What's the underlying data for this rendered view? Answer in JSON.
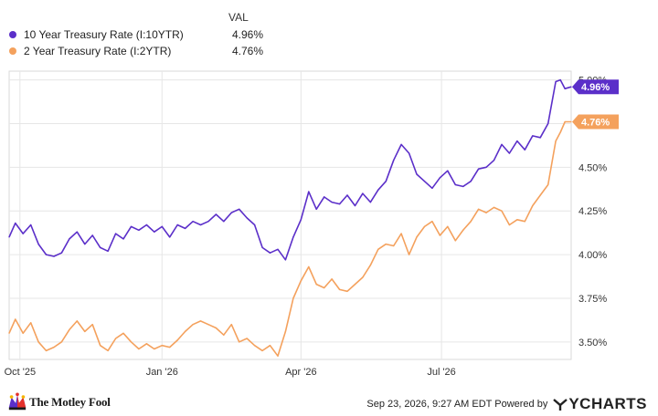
{
  "legend": {
    "header": "VAL",
    "items": [
      {
        "name": "10 Year Treasury Rate (I:10YTR)",
        "value": "4.96%",
        "color": "#5b2fc9"
      },
      {
        "name": "2 Year Treasury Rate (I:2YTR)",
        "value": "4.76%",
        "color": "#f4a15d"
      }
    ]
  },
  "footer": {
    "brand": "The Motley Fool",
    "attribution": "Sep 23, 2026, 9:27 AM EDT Powered by",
    "ycharts": "YCHARTS"
  },
  "chart_data": {
    "type": "line",
    "x_type": "date",
    "xlim": [
      "2025-09-24",
      "2026-09-23"
    ],
    "ylim": [
      3.4,
      5.05
    ],
    "y_ticks": [
      3.5,
      3.75,
      4.0,
      4.25,
      4.5,
      5.0
    ],
    "y_tick_labels": [
      "3.50%",
      "3.75%",
      "4.00%",
      "4.25%",
      "4.50%",
      "5.00%"
    ],
    "x_ticks": [
      "2025-10-01",
      "2026-01-01",
      "2026-04-01",
      "2026-07-01"
    ],
    "x_tick_labels": [
      "Oct '25",
      "Jan '26",
      "Apr '26",
      "Jul '26"
    ],
    "grid": true,
    "series": [
      {
        "name": "10 Year Treasury Rate (I:10YTR)",
        "color": "#5b2fc9",
        "end_label": "4.96%",
        "points": [
          [
            "2025-09-24",
            4.1
          ],
          [
            "2025-09-28",
            4.18
          ],
          [
            "2025-10-03",
            4.12
          ],
          [
            "2025-10-08",
            4.17
          ],
          [
            "2025-10-13",
            4.06
          ],
          [
            "2025-10-18",
            4.0
          ],
          [
            "2025-10-23",
            3.99
          ],
          [
            "2025-10-28",
            4.01
          ],
          [
            "2025-11-02",
            4.09
          ],
          [
            "2025-11-07",
            4.13
          ],
          [
            "2025-11-12",
            4.06
          ],
          [
            "2025-11-17",
            4.11
          ],
          [
            "2025-11-22",
            4.04
          ],
          [
            "2025-11-27",
            4.02
          ],
          [
            "2025-12-02",
            4.12
          ],
          [
            "2025-12-07",
            4.09
          ],
          [
            "2025-12-12",
            4.16
          ],
          [
            "2025-12-17",
            4.14
          ],
          [
            "2025-12-22",
            4.17
          ],
          [
            "2025-12-27",
            4.13
          ],
          [
            "2026-01-01",
            4.16
          ],
          [
            "2026-01-06",
            4.1
          ],
          [
            "2026-01-11",
            4.17
          ],
          [
            "2026-01-16",
            4.15
          ],
          [
            "2026-01-21",
            4.19
          ],
          [
            "2026-01-26",
            4.17
          ],
          [
            "2026-01-31",
            4.19
          ],
          [
            "2026-02-05",
            4.23
          ],
          [
            "2026-02-10",
            4.19
          ],
          [
            "2026-02-15",
            4.24
          ],
          [
            "2026-02-20",
            4.26
          ],
          [
            "2026-02-25",
            4.21
          ],
          [
            "2026-03-02",
            4.17
          ],
          [
            "2026-03-07",
            4.04
          ],
          [
            "2026-03-12",
            4.01
          ],
          [
            "2026-03-17",
            4.03
          ],
          [
            "2026-03-22",
            3.97
          ],
          [
            "2026-03-27",
            4.1
          ],
          [
            "2026-04-01",
            4.2
          ],
          [
            "2026-04-06",
            4.36
          ],
          [
            "2026-04-11",
            4.26
          ],
          [
            "2026-04-16",
            4.33
          ],
          [
            "2026-04-21",
            4.3
          ],
          [
            "2026-04-26",
            4.29
          ],
          [
            "2026-05-01",
            4.34
          ],
          [
            "2026-05-06",
            4.28
          ],
          [
            "2026-05-11",
            4.35
          ],
          [
            "2026-05-16",
            4.3
          ],
          [
            "2026-05-21",
            4.37
          ],
          [
            "2026-05-26",
            4.42
          ],
          [
            "2026-05-31",
            4.54
          ],
          [
            "2026-06-05",
            4.63
          ],
          [
            "2026-06-10",
            4.58
          ],
          [
            "2026-06-15",
            4.46
          ],
          [
            "2026-06-20",
            4.42
          ],
          [
            "2026-06-25",
            4.38
          ],
          [
            "2026-06-30",
            4.44
          ],
          [
            "2026-07-05",
            4.48
          ],
          [
            "2026-07-10",
            4.4
          ],
          [
            "2026-07-15",
            4.39
          ],
          [
            "2026-07-20",
            4.42
          ],
          [
            "2026-07-25",
            4.49
          ],
          [
            "2026-07-30",
            4.5
          ],
          [
            "2026-08-04",
            4.54
          ],
          [
            "2026-08-09",
            4.63
          ],
          [
            "2026-08-14",
            4.58
          ],
          [
            "2026-08-19",
            4.65
          ],
          [
            "2026-08-24",
            4.6
          ],
          [
            "2026-08-29",
            4.68
          ],
          [
            "2026-09-03",
            4.67
          ],
          [
            "2026-09-08",
            4.75
          ],
          [
            "2026-09-13",
            4.99
          ],
          [
            "2026-09-16",
            5.0
          ],
          [
            "2026-09-19",
            4.95
          ],
          [
            "2026-09-23",
            4.96
          ]
        ]
      },
      {
        "name": "2 Year Treasury Rate (I:2YTR)",
        "color": "#f4a15d",
        "end_label": "4.76%",
        "points": [
          [
            "2025-09-24",
            3.55
          ],
          [
            "2025-09-28",
            3.63
          ],
          [
            "2025-10-03",
            3.55
          ],
          [
            "2025-10-08",
            3.61
          ],
          [
            "2025-10-13",
            3.5
          ],
          [
            "2025-10-18",
            3.45
          ],
          [
            "2025-10-23",
            3.47
          ],
          [
            "2025-10-28",
            3.5
          ],
          [
            "2025-11-02",
            3.57
          ],
          [
            "2025-11-07",
            3.62
          ],
          [
            "2025-11-12",
            3.56
          ],
          [
            "2025-11-17",
            3.6
          ],
          [
            "2025-11-22",
            3.48
          ],
          [
            "2025-11-27",
            3.45
          ],
          [
            "2025-12-02",
            3.52
          ],
          [
            "2025-12-07",
            3.55
          ],
          [
            "2025-12-12",
            3.5
          ],
          [
            "2025-12-17",
            3.46
          ],
          [
            "2025-12-22",
            3.49
          ],
          [
            "2025-12-27",
            3.46
          ],
          [
            "2026-01-01",
            3.48
          ],
          [
            "2026-01-06",
            3.47
          ],
          [
            "2026-01-11",
            3.51
          ],
          [
            "2026-01-16",
            3.56
          ],
          [
            "2026-01-21",
            3.6
          ],
          [
            "2026-01-26",
            3.62
          ],
          [
            "2026-01-31",
            3.6
          ],
          [
            "2026-02-05",
            3.58
          ],
          [
            "2026-02-10",
            3.54
          ],
          [
            "2026-02-15",
            3.6
          ],
          [
            "2026-02-20",
            3.5
          ],
          [
            "2026-02-25",
            3.52
          ],
          [
            "2026-03-02",
            3.48
          ],
          [
            "2026-03-07",
            3.45
          ],
          [
            "2026-03-12",
            3.48
          ],
          [
            "2026-03-17",
            3.42
          ],
          [
            "2026-03-22",
            3.56
          ],
          [
            "2026-03-27",
            3.75
          ],
          [
            "2026-04-01",
            3.85
          ],
          [
            "2026-04-06",
            3.93
          ],
          [
            "2026-04-11",
            3.83
          ],
          [
            "2026-04-16",
            3.81
          ],
          [
            "2026-04-21",
            3.86
          ],
          [
            "2026-04-26",
            3.8
          ],
          [
            "2026-05-01",
            3.79
          ],
          [
            "2026-05-06",
            3.83
          ],
          [
            "2026-05-11",
            3.87
          ],
          [
            "2026-05-16",
            3.94
          ],
          [
            "2026-05-21",
            4.03
          ],
          [
            "2026-05-26",
            4.06
          ],
          [
            "2026-05-31",
            4.05
          ],
          [
            "2026-06-05",
            4.12
          ],
          [
            "2026-06-10",
            4.0
          ],
          [
            "2026-06-15",
            4.1
          ],
          [
            "2026-06-20",
            4.16
          ],
          [
            "2026-06-25",
            4.19
          ],
          [
            "2026-06-30",
            4.11
          ],
          [
            "2026-07-05",
            4.16
          ],
          [
            "2026-07-10",
            4.08
          ],
          [
            "2026-07-15",
            4.14
          ],
          [
            "2026-07-20",
            4.19
          ],
          [
            "2026-07-25",
            4.26
          ],
          [
            "2026-07-30",
            4.24
          ],
          [
            "2026-08-04",
            4.27
          ],
          [
            "2026-08-09",
            4.25
          ],
          [
            "2026-08-14",
            4.17
          ],
          [
            "2026-08-19",
            4.2
          ],
          [
            "2026-08-24",
            4.19
          ],
          [
            "2026-08-29",
            4.28
          ],
          [
            "2026-09-03",
            4.34
          ],
          [
            "2026-09-08",
            4.4
          ],
          [
            "2026-09-13",
            4.65
          ],
          [
            "2026-09-16",
            4.7
          ],
          [
            "2026-09-19",
            4.76
          ],
          [
            "2026-09-23",
            4.76
          ]
        ]
      }
    ]
  }
}
